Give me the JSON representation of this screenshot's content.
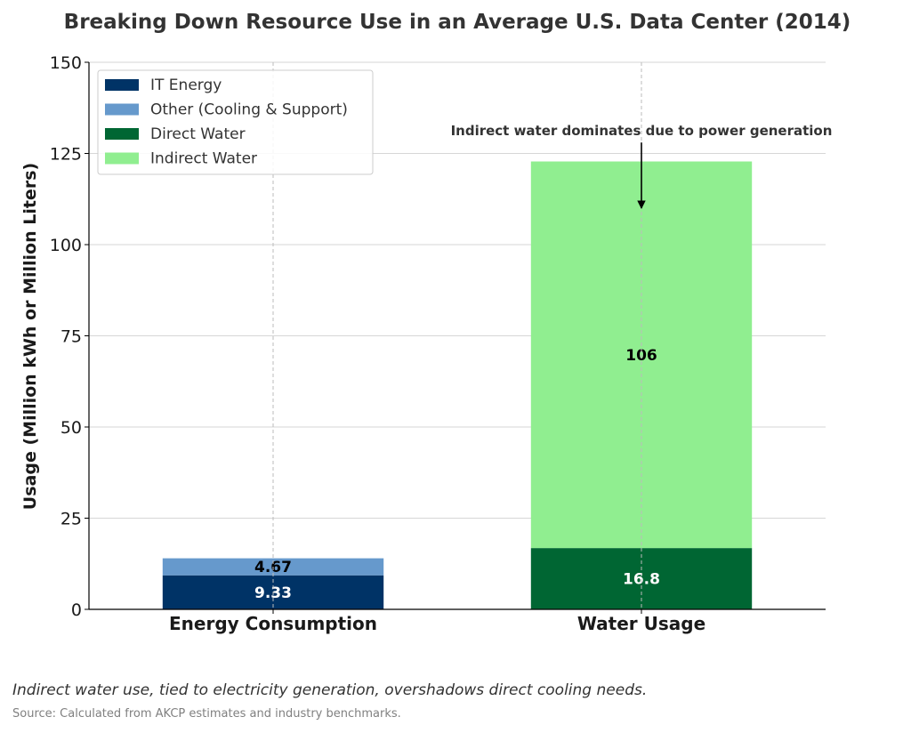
{
  "chart_data": {
    "type": "bar",
    "stacked": true,
    "title": "Breaking Down Resource Use in an Average U.S. Data Center (2014)",
    "ylabel": "Usage (Million kWh or Million Liters)",
    "xlabel": "",
    "categories": [
      "Energy Consumption",
      "Water Usage"
    ],
    "ylim": [
      0,
      150
    ],
    "yticks": [
      0,
      25,
      50,
      75,
      100,
      125,
      150
    ],
    "grid": true,
    "legend_position": "top-left",
    "series": [
      {
        "name": "IT Energy",
        "color": "#003366",
        "values": [
          9.33,
          0
        ],
        "labels": [
          "9.33",
          ""
        ],
        "label_color": "#ffffff"
      },
      {
        "name": "Other (Cooling & Support)",
        "color": "#6699cc",
        "values": [
          4.67,
          0
        ],
        "labels": [
          "4.67",
          ""
        ],
        "label_color": "#000000"
      },
      {
        "name": "Direct Water",
        "color": "#006633",
        "values": [
          0,
          16.8
        ],
        "labels": [
          "",
          "16.8"
        ],
        "label_color": "#ffffff"
      },
      {
        "name": "Indirect Water",
        "color": "#90ee90",
        "values": [
          0,
          106
        ],
        "labels": [
          "",
          "106"
        ],
        "label_color": "#000000"
      }
    ],
    "annotation": {
      "text": "Indirect water dominates due to power generation",
      "category": "Water Usage",
      "arrow_from_y": 128,
      "arrow_to_y": 110
    }
  },
  "caption": "Indirect water use, tied to electricity generation, overshadows direct cooling needs.",
  "source": "Source: Calculated from AKCP estimates and industry benchmarks."
}
